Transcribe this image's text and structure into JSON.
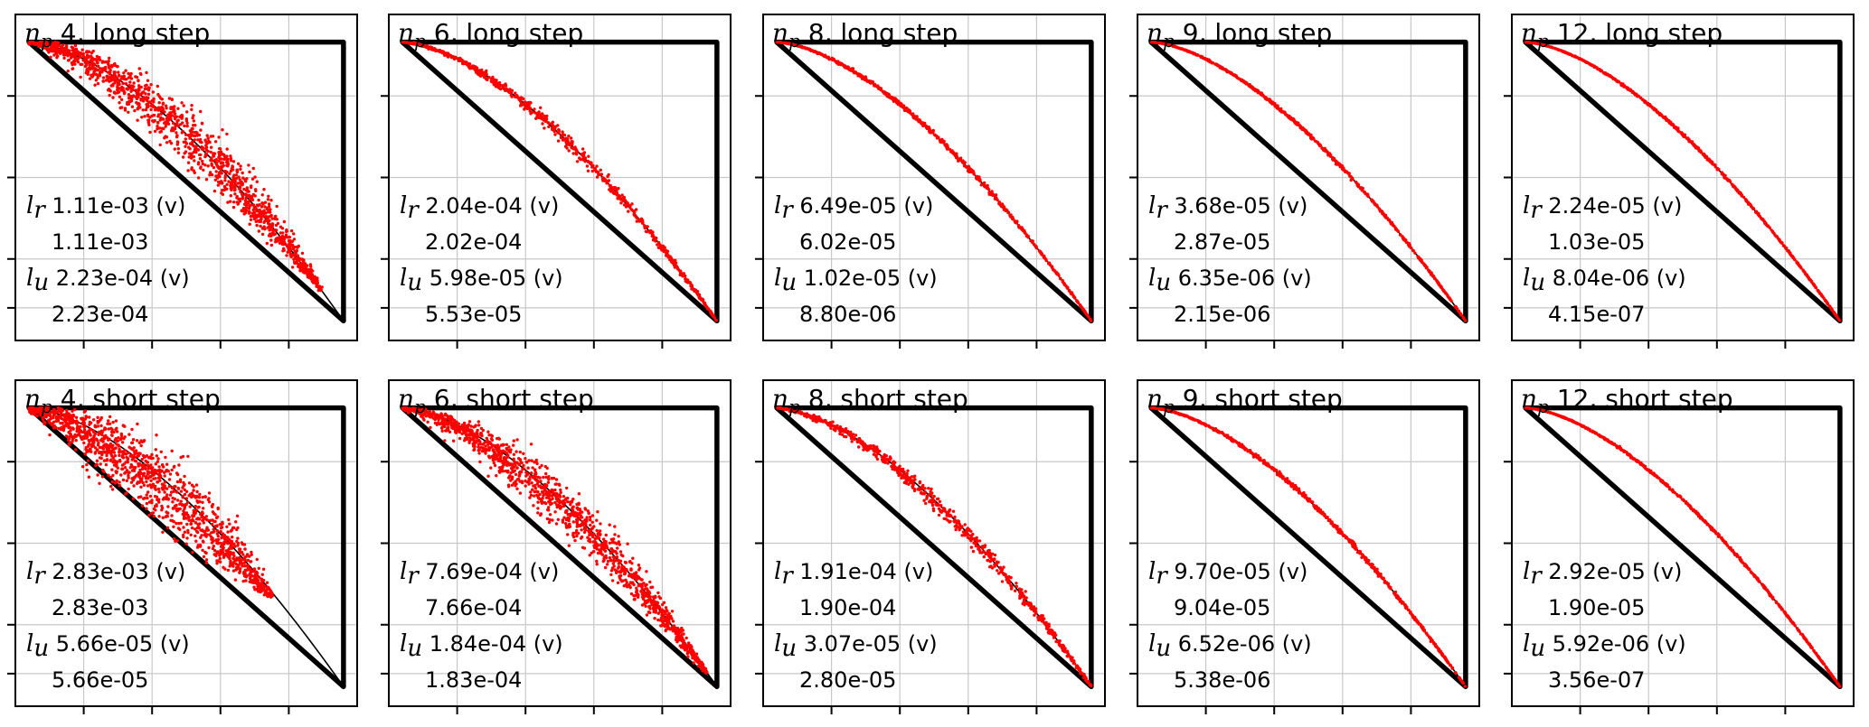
{
  "colors": {
    "points": "#ff0000",
    "frame": "#000000",
    "grid": "#c8c8c8",
    "axes": "#000000"
  },
  "chart_data": {
    "type": "scatter",
    "grid": true,
    "xlim": [
      0,
      1
    ],
    "ylim": [
      0,
      1
    ],
    "panels": [
      {
        "np_symbol": "n",
        "np_sub": "p",
        "title": "4, long step",
        "lr_symbol": "l",
        "lr_sub": "r",
        "lr_v": "1.11e-03 (v)",
        "lr": "1.11e-03",
        "lu_symbol": "l",
        "lu_sub": "u",
        "lu_v": "2.23e-04 (v)",
        "lu": "2.23e-04",
        "band_spread": 0.035,
        "points_to": 0.93,
        "curvature": 1.0
      },
      {
        "np_symbol": "n",
        "np_sub": "p",
        "title": "6, long step",
        "lr_symbol": "l",
        "lr_sub": "r",
        "lr_v": "2.04e-04 (v)",
        "lr": "2.02e-04",
        "lu_symbol": "l",
        "lu_sub": "u",
        "lu_v": "5.98e-05 (v)",
        "lu": "5.53e-05",
        "band_spread": 0.008,
        "points_to": 1.0,
        "curvature": 1.0
      },
      {
        "np_symbol": "n",
        "np_sub": "p",
        "title": "8, long step",
        "lr_symbol": "l",
        "lr_sub": "r",
        "lr_v": "6.49e-05 (v)",
        "lr": "6.02e-05",
        "lu_symbol": "l",
        "lu_sub": "u",
        "lu_v": "1.02e-05 (v)",
        "lu": "8.80e-06",
        "band_spread": 0.003,
        "points_to": 1.0,
        "curvature": 1.0
      },
      {
        "np_symbol": "n",
        "np_sub": "p",
        "title": "9, long step",
        "lr_symbol": "l",
        "lr_sub": "r",
        "lr_v": "3.68e-05 (v)",
        "lr": "2.87e-05",
        "lu_symbol": "l",
        "lu_sub": "u",
        "lu_v": "6.35e-06 (v)",
        "lu": "2.15e-06",
        "band_spread": 0.002,
        "points_to": 1.0,
        "curvature": 1.0
      },
      {
        "np_symbol": "n",
        "np_sub": "p",
        "title": "12, long step",
        "lr_symbol": "l",
        "lr_sub": "r",
        "lr_v": "2.24e-05 (v)",
        "lr": "1.03e-05",
        "lu_symbol": "l",
        "lu_sub": "u",
        "lu_v": "8.04e-06 (v)",
        "lu": "4.15e-07",
        "band_spread": 0.0015,
        "points_to": 1.0,
        "curvature": 1.0
      },
      {
        "np_symbol": "n",
        "np_sub": "p",
        "title": "4, short step",
        "lr_symbol": "l",
        "lr_sub": "r",
        "lr_v": "2.83e-03 (v)",
        "lr": "2.83e-03",
        "lu_symbol": "l",
        "lu_sub": "u",
        "lu_v": "5.66e-05 (v)",
        "lu": "5.66e-05",
        "band_spread": 0.05,
        "points_to": 0.77,
        "curvature": 0.82
      },
      {
        "np_symbol": "n",
        "np_sub": "p",
        "title": "6, short step",
        "lr_symbol": "l",
        "lr_sub": "r",
        "lr_v": "7.69e-04 (v)",
        "lr": "7.66e-04",
        "lu_symbol": "l",
        "lu_sub": "u",
        "lu_v": "1.84e-04 (v)",
        "lu": "1.83e-04",
        "band_spread": 0.03,
        "points_to": 0.97,
        "curvature": 0.92
      },
      {
        "np_symbol": "n",
        "np_sub": "p",
        "title": "8, short step",
        "lr_symbol": "l",
        "lr_sub": "r",
        "lr_v": "1.91e-04 (v)",
        "lr": "1.90e-04",
        "lu_symbol": "l",
        "lu_sub": "u",
        "lu_v": "3.07e-05 (v)",
        "lu": "2.80e-05",
        "band_spread": 0.01,
        "points_to": 1.0,
        "curvature": 0.98
      },
      {
        "np_symbol": "n",
        "np_sub": "p",
        "title": "9, short step",
        "lr_symbol": "l",
        "lr_sub": "r",
        "lr_v": "9.70e-05 (v)",
        "lr": "9.04e-05",
        "lu_symbol": "l",
        "lu_sub": "u",
        "lu_v": "6.52e-06 (v)",
        "lu": "5.38e-06",
        "band_spread": 0.003,
        "points_to": 1.0,
        "curvature": 1.0
      },
      {
        "np_symbol": "n",
        "np_sub": "p",
        "title": "12, short step",
        "lr_symbol": "l",
        "lr_sub": "r",
        "lr_v": "2.92e-05 (v)",
        "lr": "1.90e-05",
        "lu_symbol": "l",
        "lu_sub": "u",
        "lu_v": "5.92e-06 (v)",
        "lu": "3.56e-07",
        "band_spread": 0.0015,
        "points_to": 1.0,
        "curvature": 1.0
      }
    ]
  }
}
